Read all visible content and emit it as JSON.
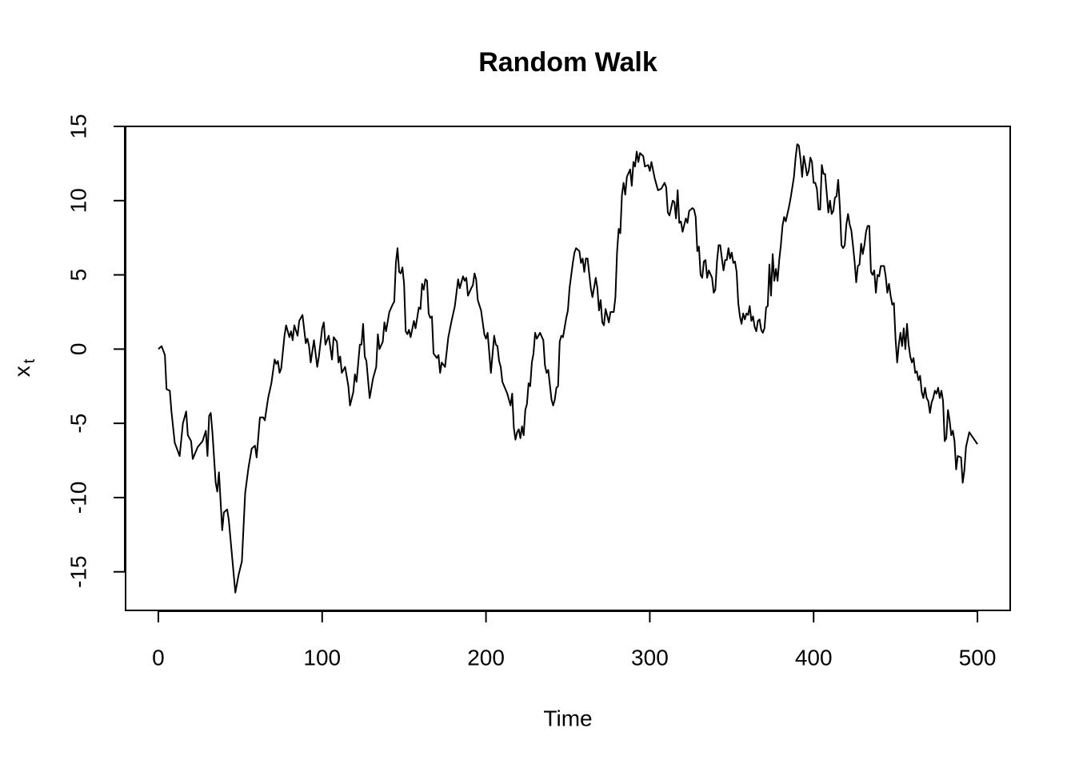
{
  "chart_data": {
    "type": "line",
    "title": "Random Walk",
    "xlabel": "Time",
    "ylabel": {
      "base": "x",
      "subscript": "t"
    },
    "x": [
      0,
      2,
      4,
      5,
      7,
      8,
      10,
      13,
      15,
      17,
      18,
      20,
      21,
      24,
      27,
      29,
      30,
      31,
      32,
      33,
      35,
      36,
      37,
      39,
      40,
      42,
      43,
      47,
      49,
      51,
      53,
      55,
      57,
      59,
      60,
      62,
      64,
      65,
      67,
      69,
      71,
      72,
      73,
      74,
      75,
      77,
      78,
      80,
      81,
      82,
      83,
      85,
      86,
      88,
      90,
      91,
      92,
      93,
      95,
      97,
      98,
      100,
      101,
      102,
      104,
      106,
      107,
      109,
      110,
      111,
      112,
      114,
      116,
      117,
      119,
      120,
      121,
      123,
      124,
      125,
      126,
      127,
      129,
      131,
      133,
      134,
      135,
      137,
      138,
      139,
      141,
      143,
      144,
      145,
      146,
      147,
      148,
      149,
      150,
      151,
      152,
      153,
      154,
      156,
      157,
      159,
      160,
      161,
      162,
      163,
      164,
      165,
      166,
      167,
      168,
      170,
      171,
      172,
      173,
      175,
      177,
      179,
      181,
      183,
      184,
      186,
      187,
      188,
      189,
      191,
      192,
      193,
      194,
      195,
      197,
      199,
      200,
      201,
      203,
      205,
      206,
      207,
      208,
      209,
      210,
      213,
      215,
      216,
      217,
      218,
      219,
      220,
      221,
      222,
      223,
      224,
      225,
      226,
      227,
      228,
      229,
      230,
      231,
      233,
      235,
      236,
      237,
      238,
      240,
      241,
      242,
      243,
      244,
      245,
      246,
      247,
      249,
      250,
      251,
      253,
      254,
      255,
      257,
      258,
      259,
      260,
      261,
      262,
      264,
      265,
      267,
      268,
      269,
      270,
      271,
      272,
      273,
      275,
      276,
      278,
      279,
      280,
      281,
      282,
      283,
      284,
      285,
      286,
      288,
      289,
      290,
      291,
      292,
      293,
      294,
      296,
      297,
      299,
      300,
      301,
      303,
      305,
      307,
      309,
      310,
      311,
      312,
      314,
      315,
      316,
      317,
      318,
      319,
      320,
      322,
      323,
      324,
      326,
      327,
      328,
      329,
      330,
      331,
      332,
      333,
      334,
      335,
      336,
      338,
      339,
      340,
      341,
      342,
      343,
      344,
      345,
      346,
      347,
      348,
      349,
      350,
      351,
      352,
      353,
      354,
      355,
      356,
      357,
      358,
      359,
      360,
      361,
      362,
      363,
      364,
      365,
      366,
      367,
      368,
      369,
      370,
      371,
      372,
      373,
      374,
      375,
      376,
      377,
      378,
      379,
      380,
      381,
      382,
      383,
      385,
      386,
      388,
      389,
      390,
      391,
      392,
      393,
      394,
      395,
      396,
      397,
      398,
      399,
      400,
      401,
      402,
      403,
      404,
      405,
      406,
      407,
      408,
      409,
      410,
      411,
      412,
      413,
      414,
      415,
      416,
      417,
      418,
      419,
      420,
      421,
      422,
      423,
      424,
      425,
      426,
      427,
      428,
      429,
      430,
      431,
      432,
      433,
      434,
      435,
      436,
      437,
      438,
      439,
      440,
      441,
      443,
      444,
      445,
      446,
      447,
      448,
      449,
      450,
      451,
      452,
      453,
      454,
      455,
      456,
      457,
      458,
      459,
      460,
      461,
      462,
      463,
      464,
      465,
      466,
      467,
      468,
      469,
      470,
      471,
      472,
      473,
      474,
      475,
      476,
      477,
      478,
      479,
      480,
      481,
      482,
      483,
      484,
      485,
      486,
      487,
      488,
      490,
      491,
      492,
      493,
      495,
      500
    ],
    "values": [
      0,
      0.2,
      -0.4,
      -2.7,
      -2.8,
      -4.2,
      -6.3,
      -7.2,
      -5,
      -4.2,
      -5.8,
      -6.2,
      -7.4,
      -6.6,
      -6.2,
      -5.5,
      -7.2,
      -4.5,
      -4.3,
      -5.6,
      -9,
      -9.6,
      -8.3,
      -12.2,
      -11,
      -10.8,
      -11.5,
      -16.4,
      -15.2,
      -14.3,
      -9.7,
      -8,
      -6.7,
      -6.5,
      -7.3,
      -4.6,
      -4.6,
      -4.8,
      -3.3,
      -2.3,
      -0.7,
      -1,
      -0.8,
      -1.6,
      -1.3,
      0.9,
      1.6,
      0.8,
      1.2,
      0.6,
      1.6,
      0.9,
      1.9,
      2.3,
      0.4,
      0.7,
      0.2,
      -0.9,
      0.6,
      -1.2,
      -0.5,
      1.4,
      1.8,
      0.3,
      0.9,
      -0.7,
      0.8,
      0.5,
      -0.9,
      -0.5,
      -1.6,
      -1.2,
      -2.5,
      -3.8,
      -2.9,
      -1.7,
      -2.2,
      0.3,
      0.3,
      1.7,
      -0.5,
      -0.8,
      -3.3,
      -2,
      -1.2,
      1,
      0,
      0.5,
      1.8,
      1.2,
      2.5,
      3,
      3.2,
      5.8,
      6.8,
      5.2,
      5.1,
      5.5,
      4.4,
      1.2,
      1,
      1.3,
      0.8,
      1.9,
      1.4,
      2.8,
      2.7,
      4.4,
      4,
      4.7,
      4.6,
      2.4,
      2.1,
      2.2,
      -0.3,
      -0.6,
      -0.4,
      -1.6,
      -0.9,
      -1.2,
      0.8,
      1.9,
      2.9,
      4.7,
      4.1,
      4.9,
      4.6,
      4.8,
      3.6,
      4.1,
      4.3,
      5.1,
      4.7,
      3.3,
      2.6,
      1,
      0.7,
      1.1,
      -1.6,
      0.9,
      0.3,
      0.2,
      -0.8,
      -1.2,
      -2.2,
      -3,
      -3.8,
      -3,
      -5.3,
      -6.1,
      -5.6,
      -5.4,
      -6,
      -5.2,
      -5.8,
      -4.1,
      -3.7,
      -2.3,
      -2.5,
      -0.9,
      -0.3,
      1.1,
      0.7,
      1.1,
      0.6,
      -1.1,
      -1.6,
      -1.4,
      -3.4,
      -3.8,
      -3.4,
      -2.6,
      -2.5,
      0.5,
      0.9,
      0.8,
      2.1,
      2.6,
      4.1,
      5.8,
      6.5,
      6.8,
      6.6,
      5.8,
      6.1,
      5.2,
      6.1,
      6.1,
      4.1,
      3.5,
      4.8,
      4.1,
      2.6,
      3.3,
      1.8,
      1.6,
      2.7,
      1.8,
      2.5,
      2.5,
      3.5,
      6.5,
      8.1,
      7.8,
      10.4,
      11.2,
      10.4,
      11.6,
      12.1,
      11,
      12.6,
      12.3,
      13.3,
      12.6,
      13.2,
      13,
      12.3,
      12.4,
      12,
      12.6,
      11.5,
      10.7,
      10.8,
      11.2,
      10.9,
      9.2,
      9,
      10,
      9.9,
      8.8,
      10.7,
      8.5,
      8.6,
      7.9,
      8.8,
      8.5,
      9.3,
      9.5,
      9.4,
      8.9,
      6.6,
      6.9,
      5,
      4.8,
      5.9,
      6,
      4.8,
      5.3,
      4.8,
      3.8,
      4,
      5.9,
      7,
      7,
      6.1,
      5.3,
      6,
      6,
      6.8,
      6.1,
      6.5,
      5.8,
      5.9,
      5.2,
      3.1,
      2.2,
      1.7,
      2.4,
      2,
      2.4,
      2.3,
      2.9,
      1.9,
      2.2,
      1.5,
      1.2,
      1.9,
      2,
      1.3,
      1.1,
      1.4,
      2.8,
      2.9,
      5.7,
      3.6,
      6.4,
      4.6,
      5.4,
      4.6,
      6,
      7,
      8.3,
      8.9,
      8.6,
      9.6,
      10.2,
      11.6,
      12.9,
      13.8,
      13.7,
      12.8,
      11.6,
      13,
      12.4,
      11.7,
      12,
      12.9,
      12.6,
      11.2,
      11.2,
      10.8,
      9.4,
      9.4,
      12.4,
      11.8,
      11.8,
      10.5,
      9.2,
      10,
      9.1,
      9.3,
      10.2,
      10.3,
      11.4,
      9.6,
      7,
      6.8,
      7,
      8.4,
      9.1,
      8.4,
      8,
      7,
      5.9,
      4.5,
      5.6,
      5.7,
      7.1,
      6.4,
      7,
      7.9,
      8.3,
      8.3,
      5.2,
      5,
      5.3,
      3.8,
      5,
      4.9,
      5.6,
      5.6,
      4.9,
      3.8,
      4.4,
      3.6,
      3,
      3.1,
      0.7,
      -0.9,
      0.3,
      1.1,
      0.2,
      1.4,
      0,
      1.7,
      0.3,
      -0.5,
      -0.9,
      -0.6,
      -1.6,
      -1.5,
      -2.1,
      -1.8,
      -2.9,
      -3.3,
      -2.6,
      -3.3,
      -3.5,
      -4.3,
      -3.6,
      -3.3,
      -2.8,
      -3,
      -2.6,
      -3.3,
      -2.8,
      -3.5,
      -6.2,
      -6,
      -4.1,
      -4.8,
      -5.8,
      -5.5,
      -6.2,
      -8.1,
      -7.2,
      -7.3,
      -9,
      -8.2,
      -6.6,
      -5.6,
      -6.4
    ],
    "color": "#000000",
    "xlim": [
      -20,
      520
    ],
    "ylim": [
      -17.6,
      15
    ],
    "xticks": [
      0,
      100,
      200,
      300,
      400,
      500
    ],
    "yticks": [
      -15,
      -10,
      -5,
      0,
      5,
      10,
      15
    ],
    "grid": false
  }
}
